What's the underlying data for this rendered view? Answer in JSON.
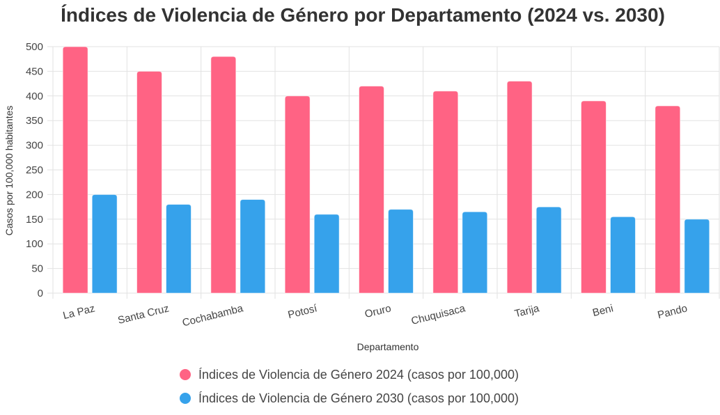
{
  "chart_data": {
    "type": "bar",
    "title": "Índices de Violencia de Género por Departamento (2024 vs. 2030)",
    "xlabel": "Departamento",
    "ylabel": "Casos por 100,000 habitantes",
    "categories": [
      "La Paz",
      "Santa Cruz",
      "Cochabamba",
      "Potosí",
      "Oruro",
      "Chuquisaca",
      "Tarija",
      "Beni",
      "Pando"
    ],
    "ylim": [
      0,
      500
    ],
    "yticks": [
      0,
      50,
      100,
      150,
      200,
      250,
      300,
      350,
      400,
      450,
      500
    ],
    "grid": true,
    "legend_position": "bottom",
    "series": [
      {
        "name": "Índices de Violencia de Género 2024 (casos por 100,000)",
        "color": "#ff6384",
        "values": [
          500,
          450,
          480,
          400,
          420,
          410,
          430,
          390,
          380
        ]
      },
      {
        "name": "Índices de Violencia de Género 2030 (casos por 100,000)",
        "color": "#36a2eb",
        "values": [
          200,
          180,
          190,
          160,
          170,
          165,
          175,
          155,
          150
        ]
      }
    ]
  }
}
